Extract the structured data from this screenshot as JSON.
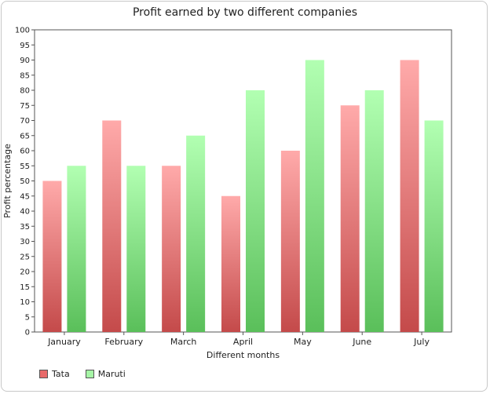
{
  "chart_data": {
    "type": "bar",
    "title": "Profit earned by two different companies",
    "xlabel": "Different months",
    "ylabel": "Profit percentage",
    "categories": [
      "January",
      "February",
      "March",
      "April",
      "May",
      "June",
      "July"
    ],
    "series": [
      {
        "name": "Tata",
        "values": [
          50,
          70,
          55,
          45,
          60,
          75,
          90
        ],
        "color_top": "#ffaaaa",
        "color_bottom": "#c44a4a",
        "swatch": "#e86a6a"
      },
      {
        "name": "Maruti",
        "values": [
          55,
          55,
          65,
          80,
          90,
          80,
          70
        ],
        "color_top": "#b2ffb2",
        "color_bottom": "#5abf5a",
        "swatch": "#a6f5a6"
      }
    ],
    "ylim": [
      0,
      100
    ],
    "ytick_step": 5,
    "grid": false,
    "legend_position": "bottom-left"
  }
}
